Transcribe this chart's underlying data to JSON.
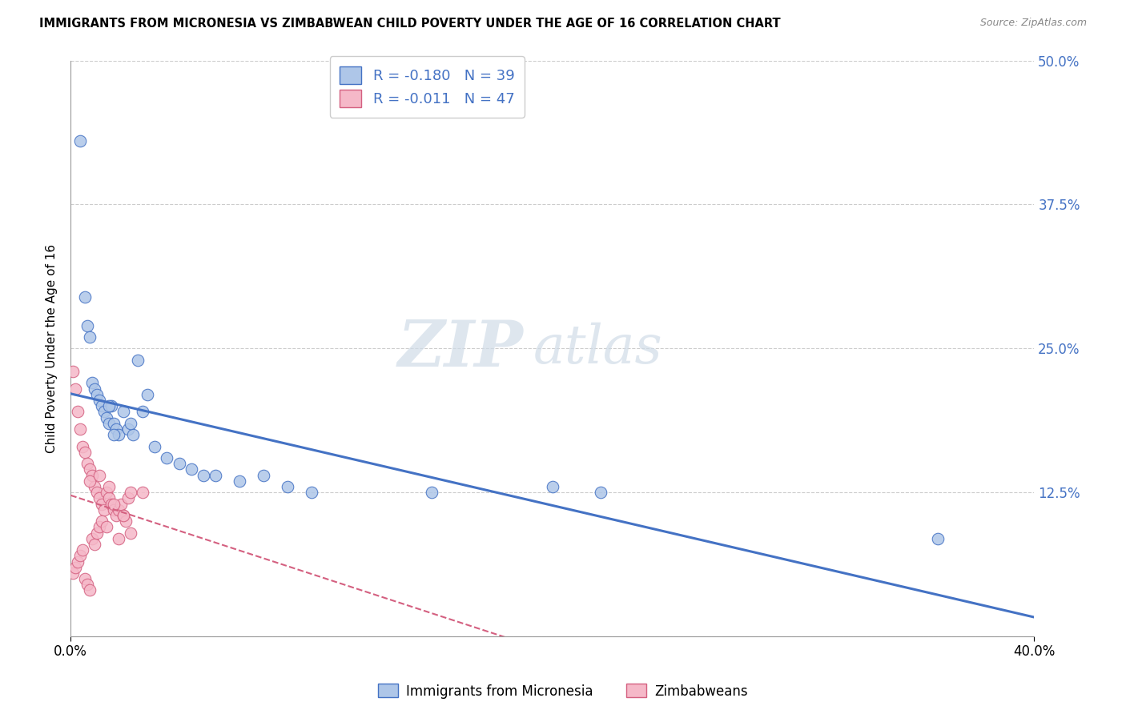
{
  "title": "IMMIGRANTS FROM MICRONESIA VS ZIMBABWEAN CHILD POVERTY UNDER THE AGE OF 16 CORRELATION CHART",
  "source": "Source: ZipAtlas.com",
  "ylabel": "Child Poverty Under the Age of 16",
  "legend_label1": "Immigrants from Micronesia",
  "legend_label2": "Zimbabweans",
  "r1": "-0.180",
  "n1": "39",
  "r2": "-0.011",
  "n2": "47",
  "color1": "#aec6e8",
  "color2": "#f5b8c8",
  "line_color1": "#4472c4",
  "line_color2": "#d46080",
  "xmin": 0.0,
  "xmax": 0.4,
  "ymin": 0.0,
  "ymax": 0.5,
  "yticks": [
    0.0,
    0.125,
    0.25,
    0.375,
    0.5
  ],
  "ytick_labels": [
    "",
    "12.5%",
    "25.0%",
    "37.5%",
    "50.0%"
  ],
  "micronesia_x": [
    0.004,
    0.006,
    0.007,
    0.008,
    0.009,
    0.01,
    0.011,
    0.012,
    0.013,
    0.014,
    0.015,
    0.016,
    0.017,
    0.018,
    0.019,
    0.02,
    0.022,
    0.024,
    0.026,
    0.028,
    0.03,
    0.035,
    0.04,
    0.045,
    0.05,
    0.06,
    0.07,
    0.08,
    0.09,
    0.1,
    0.15,
    0.2,
    0.22,
    0.016,
    0.018,
    0.025,
    0.032,
    0.055,
    0.36
  ],
  "micronesia_y": [
    0.43,
    0.295,
    0.27,
    0.26,
    0.22,
    0.215,
    0.21,
    0.205,
    0.2,
    0.195,
    0.19,
    0.185,
    0.2,
    0.185,
    0.18,
    0.175,
    0.195,
    0.18,
    0.175,
    0.24,
    0.195,
    0.165,
    0.155,
    0.15,
    0.145,
    0.14,
    0.135,
    0.14,
    0.13,
    0.125,
    0.125,
    0.13,
    0.125,
    0.2,
    0.175,
    0.185,
    0.21,
    0.14,
    0.085
  ],
  "zimbabwe_x": [
    0.001,
    0.002,
    0.003,
    0.004,
    0.005,
    0.006,
    0.007,
    0.008,
    0.009,
    0.01,
    0.011,
    0.012,
    0.013,
    0.014,
    0.015,
    0.016,
    0.017,
    0.018,
    0.019,
    0.02,
    0.021,
    0.022,
    0.023,
    0.024,
    0.025,
    0.001,
    0.002,
    0.003,
    0.004,
    0.005,
    0.006,
    0.007,
    0.008,
    0.009,
    0.01,
    0.011,
    0.012,
    0.013,
    0.03,
    0.015,
    0.02,
    0.025,
    0.016,
    0.018,
    0.022,
    0.008,
    0.012
  ],
  "zimbabwe_y": [
    0.23,
    0.215,
    0.195,
    0.18,
    0.165,
    0.16,
    0.15,
    0.145,
    0.14,
    0.13,
    0.125,
    0.12,
    0.115,
    0.11,
    0.125,
    0.12,
    0.115,
    0.11,
    0.105,
    0.11,
    0.115,
    0.105,
    0.1,
    0.12,
    0.125,
    0.055,
    0.06,
    0.065,
    0.07,
    0.075,
    0.05,
    0.045,
    0.04,
    0.085,
    0.08,
    0.09,
    0.095,
    0.1,
    0.125,
    0.095,
    0.085,
    0.09,
    0.13,
    0.115,
    0.105,
    0.135,
    0.14
  ]
}
